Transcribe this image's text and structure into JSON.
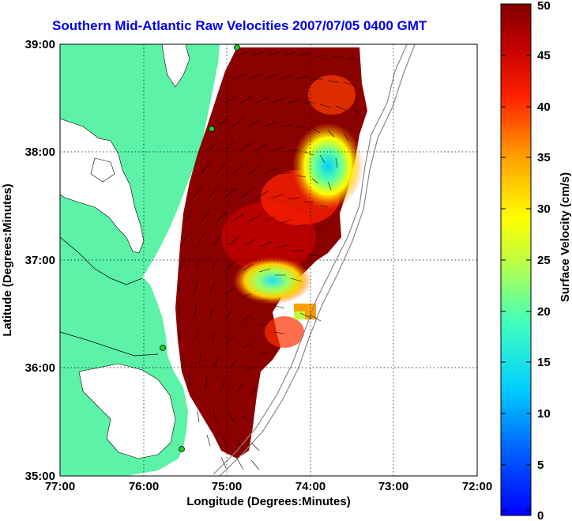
{
  "title": "Southern Mid-Atlantic Raw Velocities 2007/07/05 0400 GMT",
  "map": {
    "xlabel": "Longitude (Degrees:Minutes)",
    "ylabel": "Latitude (Degrees:Minutes)",
    "x_ticks": [
      "77:00",
      "76:00",
      "75:00",
      "74:00",
      "73:00",
      "72:00"
    ],
    "y_ticks": [
      "35:00",
      "36:00",
      "37:00",
      "38:00",
      "39:00"
    ],
    "lon_range": [
      -77,
      -72
    ],
    "lat_range": [
      35,
      39
    ],
    "grid": "dotted"
  },
  "colorbar": {
    "label": "Surface Velocity (cm/s)",
    "ticks": [
      "0",
      "5",
      "10",
      "15",
      "20",
      "25",
      "30",
      "35",
      "40",
      "45",
      "50"
    ],
    "range": [
      0,
      50
    ],
    "colormap": "jet"
  },
  "colors": {
    "land": "#5cf2a8",
    "water": "#ffffff",
    "title": "#0000ee",
    "high_speed": "#8b0000",
    "station": "#22cc22"
  }
}
